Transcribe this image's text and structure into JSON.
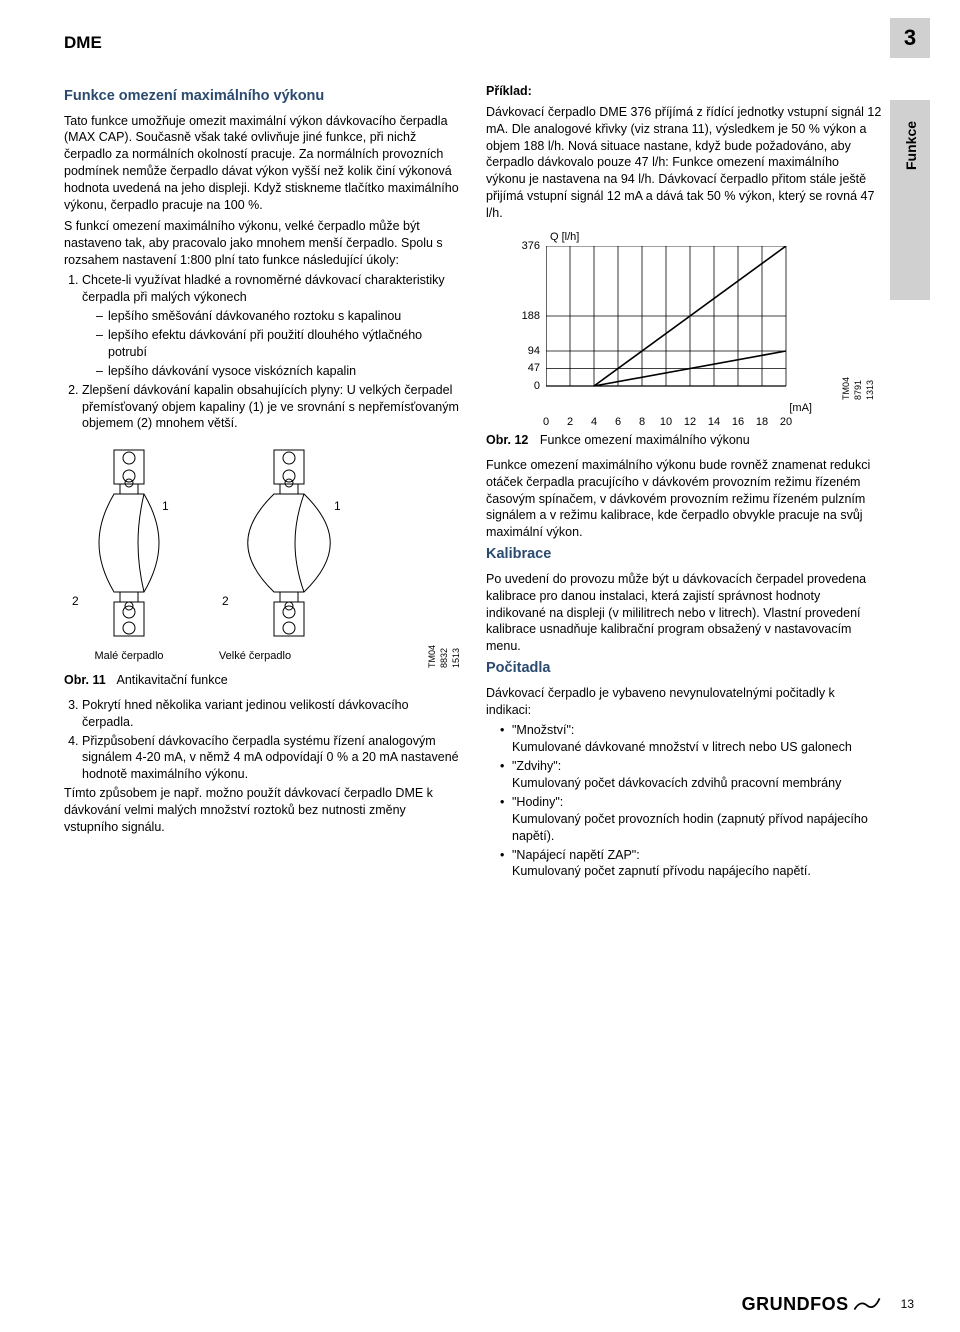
{
  "doc": {
    "title": "DME",
    "chapter_num": "3",
    "side_tab": "Funkce",
    "footer_logo": "GRUNDFOS",
    "page_number": "13"
  },
  "left": {
    "h1": "Funkce omezení maximálního výkonu",
    "p1": "Tato funkce umožňuje omezit maximální výkon dávkovacího čerpadla (MAX CAP). Současně však také ovlivňuje jiné funkce, při nichž čerpadlo za normálních okolností pracuje. Za normálních provozních podmínek nemůže čerpadlo dávat výkon vyšší než kolik činí výkonová hodnota uvedená na jeho displeji. Když stiskneme tlačítko maximálního výkonu, čerpadlo pracuje na 100 %.",
    "p2": "S funkcí omezení maximálního výkonu, velké čerpadlo může být nastaveno tak, aby pracovalo jako mnohem menší čerpadlo. Spolu s rozsahem nastavení 1:800 plní tato funkce následující úkoly:",
    "li1": "Chcete-li využívat hladké a rovnoměrné dávkovací charakteristiky čerpadla při malých výkonech",
    "li1a": "lepšího směšování dávkovaného roztoku s kapalinou",
    "li1b": "lepšího efektu dávkování při použití dlouhého výtlačného potrubí",
    "li1c": "lepšího dávkování vysoce viskózních kapalin",
    "li2": "Zlepšení dávkování kapalin obsahujících plyny: U velkých čerpadel přemísťovaný objem kapaliny (1) je ve srovnání s nepřemísťovaným objemem (2) mnohem větší.",
    "fig11": {
      "small_label": "Malé čerpadlo",
      "large_label": "Velké čerpadlo",
      "caption_label": "Obr. 11",
      "caption_text": "Antikavitační funkce",
      "tm_code": "TM04 8832 1513",
      "ann1": "1",
      "ann2": "2"
    },
    "li3": "Pokrytí hned několika variant jedinou velikostí dávkovacího čerpadla.",
    "li4": "Přizpůsobení dávkovacího čerpadla systému řízení analogovým signálem 4-20 mA, v němž 4 mA odpovídají 0 % a 20 mA nastavené hodnotě maximálního výkonu.",
    "p3": "Tímto způsobem je např. možno použít dávkovací čerpadlo DME k dávkování velmi malých množství roztoků bez nutnosti změny vstupního signálu."
  },
  "right": {
    "ex_label": "Příklad:",
    "p1": "Dávkovací čerpadlo DME 376 příjímá z řídící jednotky vstupní signál 12 mA. Dle analogové křivky (viz strana 11), výsledkem je 50 % výkon a objem 188 l/h. Nová situace nastane, když bude požadováno, aby čerpadlo dávkovalo pouze 47 l/h: Funkce omezení maximálního výkonu je nastavena na 94 l/h. Dávkovací čerpadlo přitom stále ještě přijímá vstupní signál 12 mA a dává tak 50 % výkon, který se rovná 47 l/h.",
    "chart": {
      "y_label": "Q [l/h]",
      "x_label": "[mA]",
      "x_ticks": [
        "0",
        "2",
        "4",
        "6",
        "8",
        "10",
        "12",
        "14",
        "16",
        "18",
        "20"
      ],
      "y_ticks": [
        "0",
        "47",
        "94",
        "188",
        "376"
      ],
      "x_range": [
        0,
        20
      ],
      "y_range": [
        0,
        376
      ],
      "series1": [
        [
          4,
          0
        ],
        [
          20,
          376
        ]
      ],
      "series2": [
        [
          4,
          0
        ],
        [
          20,
          94
        ]
      ],
      "grid_x": [
        0,
        2,
        4,
        6,
        8,
        10,
        12,
        14,
        16,
        18,
        20
      ],
      "grid_y": [
        0,
        47,
        94,
        188,
        376
      ],
      "tm_code": "TM04 8791 1313",
      "caption_label": "Obr. 12",
      "caption_text": "Funkce omezení maximálního výkonu"
    },
    "p2": "Funkce omezení maximálního výkonu bude rovněž znamenat redukci otáček čerpadla pracujícího v dávkovém provozním režimu řízeném časovým spínačem, v dávkovém provozním režimu řízeném pulzním signálem a v režimu kalibrace, kde čerpadlo obvykle pracuje na svůj maximální výkon.",
    "h_kal": "Kalibrace",
    "p_kal": "Po uvedení do provozu může být u dávkovacích čerpadel provedena kalibrace pro danou instalaci, která zajistí správnost hodnoty indikované na displeji (v mililitrech nebo v litrech). Vlastní provedení kalibrace usnadňuje kalibrační program obsažený v nastavovacím menu.",
    "h_poc": "Počitadla",
    "p_poc": "Dávkovací čerpadlo je vybaveno nevynulovatelnými počitadly k indikaci:",
    "c1a": "\"Množství\":",
    "c1b": "Kumulované dávkované množství v litrech nebo US galonech",
    "c2a": "\"Zdvihy\":",
    "c2b": "Kumulovaný počet dávkovacích zdvihů pracovní membrány",
    "c3a": "\"Hodiny\":",
    "c3b": "Kumulovaný počet provozních hodin (zapnutý přívod napájecího napětí).",
    "c4a": "\"Napájecí napětí ZAP\":",
    "c4b": "Kumulovaný počet zapnutí přívodu napájecího napětí."
  }
}
